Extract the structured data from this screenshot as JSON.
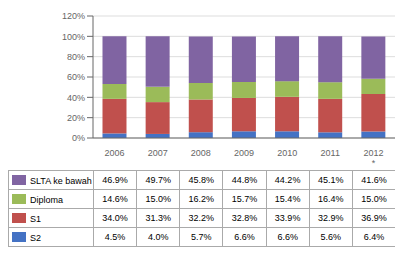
{
  "chart_data": {
    "type": "bar",
    "stacked": true,
    "grid": true,
    "categories": [
      "2006",
      "2007",
      "2008",
      "2009",
      "2010",
      "2011",
      "2012\n*"
    ],
    "series": [
      {
        "name": "S2",
        "color": "#4472C4",
        "values": [
          4.5,
          4.0,
          5.7,
          6.6,
          6.6,
          5.6,
          6.4
        ],
        "value_labels": [
          "4.5%",
          "4.0%",
          "5.7%",
          "6.6%",
          "6.6%",
          "5.6%",
          "6.4%"
        ]
      },
      {
        "name": "S1",
        "color": "#C0504D",
        "values": [
          34.0,
          31.3,
          32.2,
          32.8,
          33.9,
          32.9,
          36.9
        ],
        "value_labels": [
          "34.0%",
          "31.3%",
          "32.2%",
          "32.8%",
          "33.9%",
          "32.9%",
          "36.9%"
        ]
      },
      {
        "name": "Diploma",
        "color": "#9BBB59",
        "values": [
          14.6,
          15.0,
          16.2,
          15.7,
          15.4,
          16.4,
          15.0
        ],
        "value_labels": [
          "14.6%",
          "15.0%",
          "16.2%",
          "15.7%",
          "15.4%",
          "16.4%",
          "15.0%"
        ]
      },
      {
        "name": "SLTA ke bawah",
        "color": "#8064A2",
        "values": [
          46.9,
          49.7,
          45.8,
          44.8,
          44.2,
          45.1,
          41.6
        ],
        "value_labels": [
          "46.9%",
          "49.7%",
          "45.8%",
          "44.8%",
          "44.2%",
          "45.1%",
          "41.6%"
        ]
      }
    ],
    "ylim": [
      0,
      120
    ],
    "yticks": [
      {
        "value": 0,
        "label": "0%"
      },
      {
        "value": 20,
        "label": "20%"
      },
      {
        "value": 40,
        "label": "40%"
      },
      {
        "value": 60,
        "label": "60%"
      },
      {
        "value": 80,
        "label": "80%"
      },
      {
        "value": 100,
        "label": "100%"
      },
      {
        "value": 120,
        "label": "120%"
      }
    ]
  }
}
